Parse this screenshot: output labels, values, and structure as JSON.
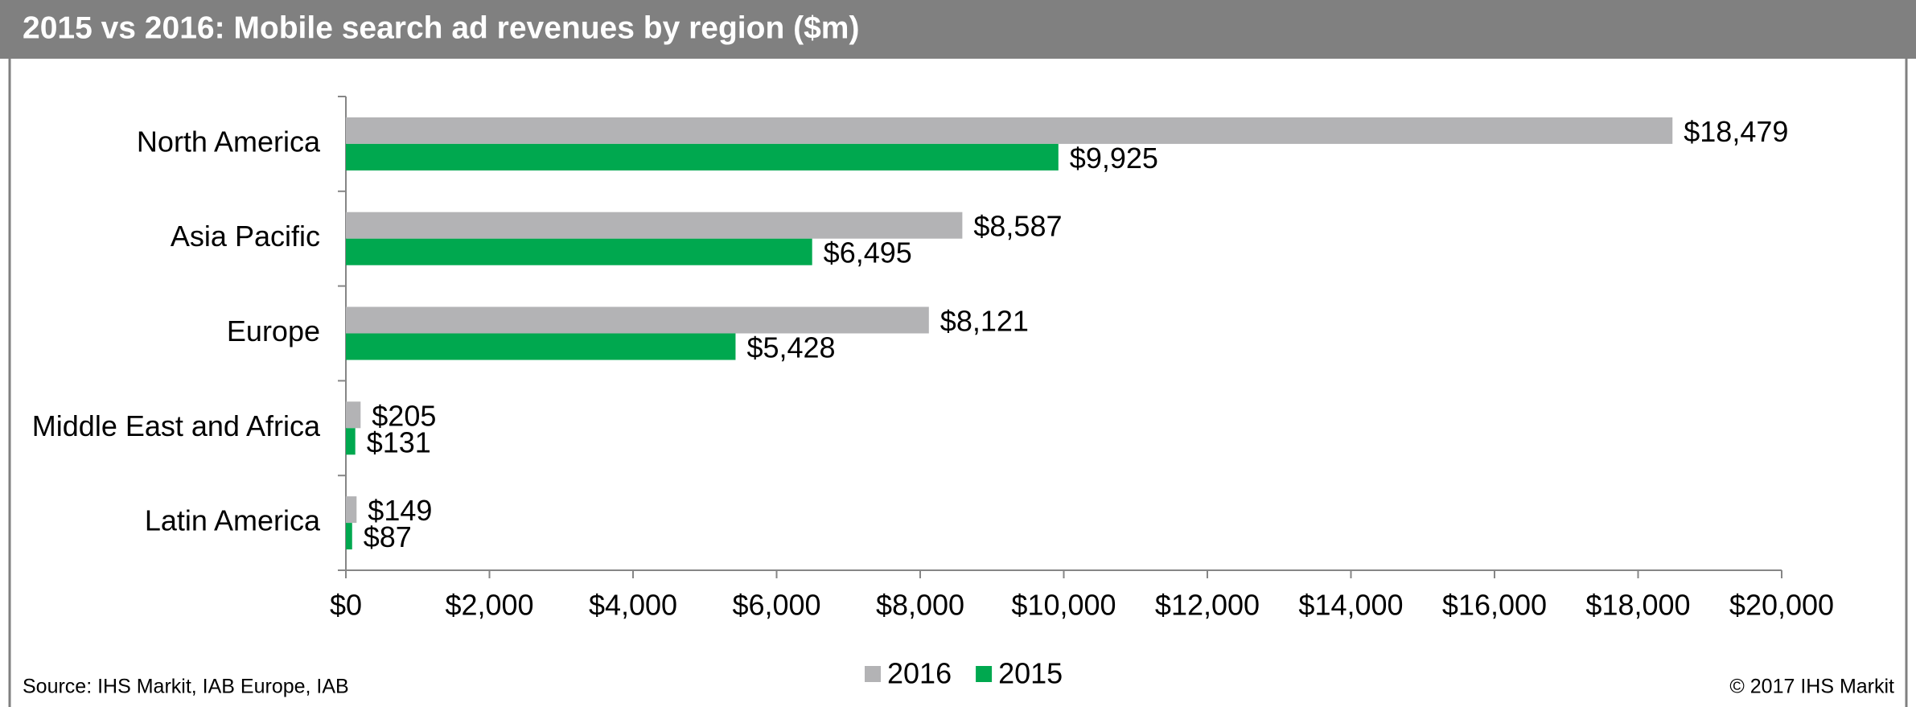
{
  "chart_data": {
    "type": "bar",
    "orientation": "horizontal",
    "title": "2015 vs 2016: Mobile search ad revenues by region ($m)",
    "categories": [
      "North America",
      "Asia Pacific",
      "Europe",
      "Middle East and Africa",
      "Latin America"
    ],
    "series": [
      {
        "name": "2016",
        "color": "#b3b3b5",
        "values": [
          18479,
          8587,
          8121,
          205,
          149
        ],
        "value_labels": [
          "$18,479",
          "$8,587",
          "$8,121",
          "$205",
          "$149"
        ]
      },
      {
        "name": "2015",
        "color": "#00a84f",
        "values": [
          9925,
          6495,
          5428,
          131,
          87
        ],
        "value_labels": [
          "$9,925",
          "$6,495",
          "$5,428",
          "$131",
          "$87"
        ]
      }
    ],
    "xlim": [
      0,
      20000
    ],
    "xticks": [
      {
        "value": 0,
        "label": "$0"
      },
      {
        "value": 2000,
        "label": "$2,000"
      },
      {
        "value": 4000,
        "label": "$4,000"
      },
      {
        "value": 6000,
        "label": "$6,000"
      },
      {
        "value": 8000,
        "label": "$8,000"
      },
      {
        "value": 10000,
        "label": "$10,000"
      },
      {
        "value": 12000,
        "label": "$12,000"
      },
      {
        "value": 14000,
        "label": "$14,000"
      },
      {
        "value": 16000,
        "label": "$16,000"
      },
      {
        "value": 18000,
        "label": "$18,000"
      },
      {
        "value": 20000,
        "label": "$20,000"
      }
    ],
    "legend": "bottom",
    "source": "Source: IHS Markit, IAB Europe, IAB",
    "copyright": "© 2017 IHS Markit"
  }
}
